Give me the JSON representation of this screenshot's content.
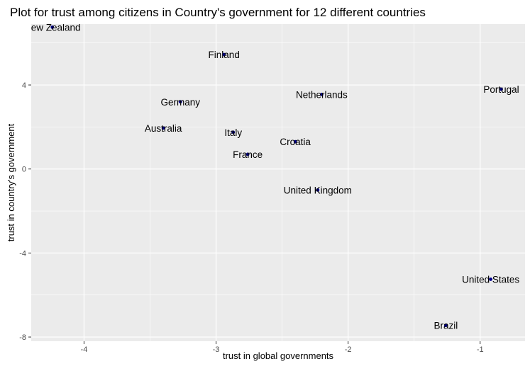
{
  "chart_data": {
    "type": "scatter",
    "title": "Plot for trust among citizens in Country's government for 12 different countries",
    "xlabel": "trust in global governments",
    "ylabel": "trust in country's government",
    "xlim": [
      -4.4,
      -0.66
    ],
    "ylim": [
      -8.2,
      6.9
    ],
    "xticks": [
      -4,
      -3,
      -2,
      -1
    ],
    "xtick_labels": [
      "-4",
      "-3",
      "-2",
      "-1"
    ],
    "yticks": [
      -8,
      -4,
      0,
      4
    ],
    "yticks_labels": [
      "-8",
      "-4",
      "0",
      "4"
    ],
    "grid": true,
    "background": "#ebebeb",
    "grid_color": "#ffffff",
    "point_color": "#00008b",
    "points": [
      {
        "label": "New Zealand",
        "x": -4.24,
        "y": 6.75
      },
      {
        "label": "Finland",
        "x": -2.94,
        "y": 5.45
      },
      {
        "label": "Germany",
        "x": -3.27,
        "y": 3.2
      },
      {
        "label": "Netherlands",
        "x": -2.2,
        "y": 3.55
      },
      {
        "label": "Portugal",
        "x": -0.84,
        "y": 3.8
      },
      {
        "label": "Australia",
        "x": -3.4,
        "y": 1.95
      },
      {
        "label": "Italy",
        "x": -2.87,
        "y": 1.75
      },
      {
        "label": "Croatia",
        "x": -2.4,
        "y": 1.3
      },
      {
        "label": "France",
        "x": -2.76,
        "y": 0.7
      },
      {
        "label": "United Kingdom",
        "x": -2.23,
        "y": -1.0
      },
      {
        "label": "United States",
        "x": -0.92,
        "y": -5.25
      },
      {
        "label": "Brazil",
        "x": -1.26,
        "y": -7.45
      }
    ]
  }
}
